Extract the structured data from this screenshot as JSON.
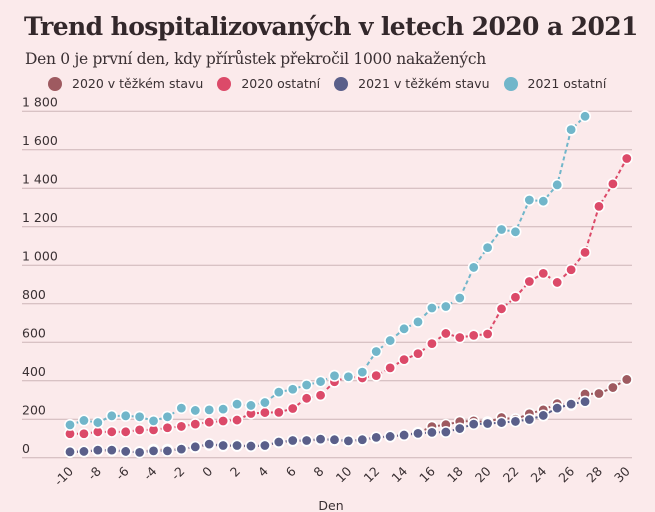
{
  "chart_data": {
    "type": "line",
    "title": "Trend hospitalizovaných v letech 2020 a 2021",
    "subtitle": "Den 0 je první den, kdy přírůstek překročil 1000 nakažených",
    "xlabel": "Den",
    "ylabel": "",
    "xlim": [
      -10,
      30
    ],
    "ylim": [
      0,
      1800
    ],
    "grid": true,
    "legend_position": "top",
    "x_ticks": [
      -10,
      -8,
      -6,
      -4,
      -2,
      0,
      2,
      4,
      6,
      8,
      10,
      12,
      14,
      16,
      18,
      20,
      22,
      24,
      26,
      28,
      30
    ],
    "y_ticks": [
      0,
      200,
      400,
      600,
      800,
      1000,
      1200,
      1400,
      1600,
      1800
    ],
    "y_tick_labels": [
      "0",
      "200",
      "400",
      "600",
      "800",
      "1 000",
      "1 200",
      "1 400",
      "1 600",
      "1 800"
    ],
    "series": [
      {
        "name": "2020 v těžkém stavu",
        "color": "#9e5a60",
        "x_start": -10,
        "values": [
          30,
          32,
          38,
          38,
          32,
          30,
          42,
          42,
          45,
          55,
          68,
          62,
          62,
          60,
          63,
          80,
          88,
          88,
          95,
          92,
          87,
          92,
          104,
          110,
          118,
          130,
          162,
          172,
          188,
          192,
          185,
          209,
          200,
          229,
          249,
          281,
          275,
          331,
          334,
          365,
          407
        ]
      },
      {
        "name": "2020 ostatní",
        "color": "#dc4a69",
        "x_start": -10,
        "values": [
          125,
          125,
          135,
          135,
          135,
          145,
          145,
          156,
          163,
          175,
          185,
          191,
          196,
          230,
          235,
          236,
          256,
          309,
          325,
          395,
          422,
          415,
          427,
          467,
          510,
          541,
          593,
          646,
          625,
          636,
          643,
          774,
          834,
          916,
          958,
          911,
          977,
          1067,
          1306,
          1423,
          1555
        ]
      },
      {
        "name": "2021 v těžkém stavu",
        "color": "#5a5f8a",
        "x_start": -10,
        "values": [
          31,
          33,
          40,
          40,
          33,
          28,
          36,
          36,
          45,
          57,
          71,
          64,
          64,
          61,
          64,
          82,
          90,
          90,
          97,
          94,
          88,
          94,
          106,
          111,
          118,
          127,
          132,
          134,
          152,
          175,
          178,
          183,
          189,
          199,
          220,
          258,
          279,
          292
        ]
      },
      {
        "name": "2021 ostatní",
        "color": "#71b6ca",
        "x_start": -10,
        "values": [
          171,
          194,
          183,
          218,
          218,
          213,
          192,
          213,
          258,
          246,
          249,
          253,
          279,
          272,
          287,
          341,
          356,
          378,
          396,
          426,
          421,
          445,
          552,
          609,
          670,
          706,
          778,
          786,
          830,
          989,
          1092,
          1186,
          1174,
          1339,
          1333,
          1418,
          1705,
          1774
        ]
      }
    ]
  }
}
